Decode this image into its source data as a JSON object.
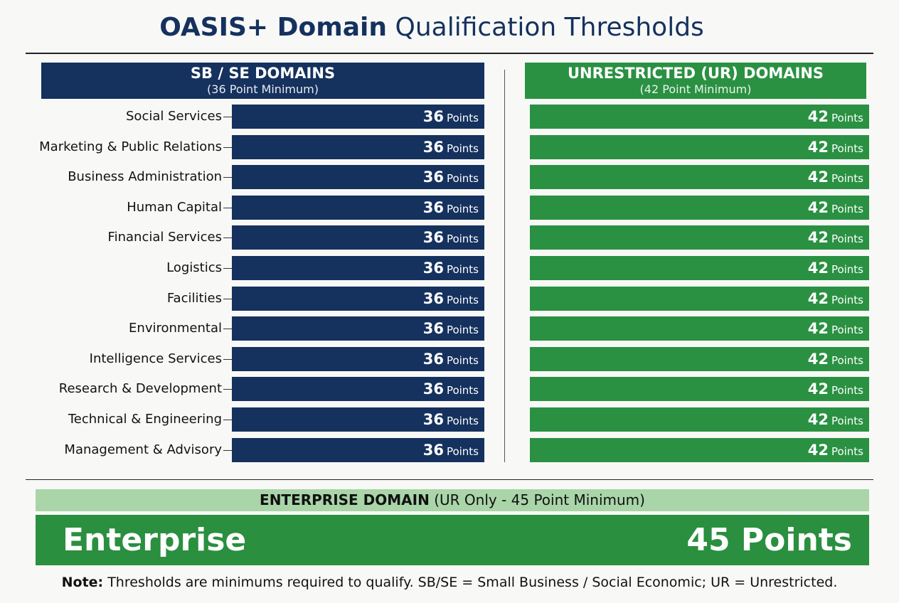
{
  "title": {
    "bold": "OASIS+ Domain",
    "rest": "Qualification Thresholds"
  },
  "sb_se": {
    "heading": "SB / SE DOMAINS",
    "subheading": "(36 Point Minimum)",
    "values": [
      36,
      36,
      36,
      36,
      36,
      36,
      36,
      36,
      36,
      36,
      36,
      36
    ]
  },
  "ur": {
    "heading": "UNRESTRICTED (UR) DOMAINS",
    "subheading": "(42 Point Minimum)",
    "values": [
      42,
      42,
      42,
      42,
      42,
      42,
      42,
      42,
      42,
      42,
      42,
      42
    ]
  },
  "unit": "Points",
  "domains": [
    "Social Services",
    "Marketing & Public Relations",
    "Business Administration",
    "Human Capital",
    "Financial Services",
    "Logistics",
    "Facilities",
    "Environmental",
    "Intelligence Services",
    "Research & Development",
    "Technical & Engineering",
    "Management & Advisory"
  ],
  "enterprise": {
    "heading": "ENTERPRISE DOMAIN",
    "subheading": "(UR Only - 45 Point Minimum)",
    "name": "Enterprise",
    "value": 45,
    "unit": "Points"
  },
  "note": {
    "label": "Note:",
    "text": "Thresholds are minimums required to qualify. SB/SE = Small Business / Social Economic; UR = Unrestricted."
  }
}
